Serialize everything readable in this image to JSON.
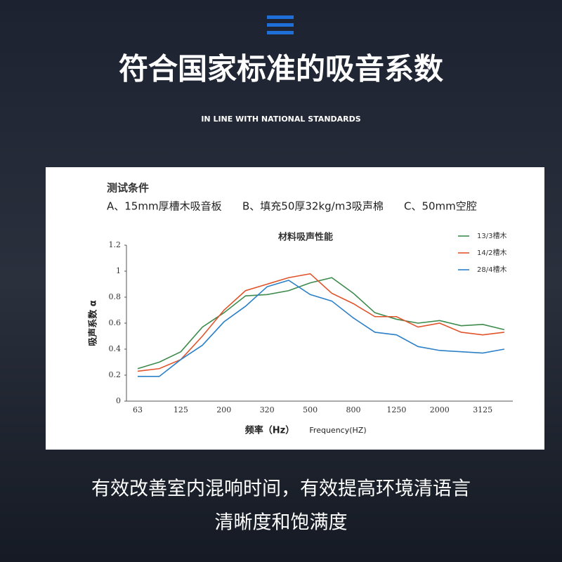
{
  "header": {
    "title": "符合国家标准的吸音系数",
    "subtitle": "IN LINE WITH NATIONAL STANDARDS"
  },
  "panel": {
    "heading": "测试条件",
    "conditions": [
      "A、15mm厚槽木吸音板",
      "B、填充50厚32kg/m3吸声棉",
      "C、50mm空腔"
    ]
  },
  "chart_data": {
    "type": "line",
    "title": "材料吸声性能",
    "y_label": "吸声系数 α",
    "x_label": "频率（Hz）",
    "x_label_en": "Frequency(HZ)",
    "categories": [
      "63",
      null,
      "125",
      null,
      "200",
      null,
      "320",
      null,
      "500",
      null,
      "800",
      null,
      "1250",
      null,
      "2000",
      null,
      "3125",
      null
    ],
    "ylim": [
      0,
      1.2
    ],
    "yticks": [
      0,
      0.2,
      0.4,
      0.6,
      0.8,
      1,
      1.2
    ],
    "grid": false,
    "legend": "top-right",
    "series": [
      {
        "name": "13/3槽木",
        "color": "#3d8b4c",
        "values": [
          0.25,
          0.3,
          0.38,
          0.57,
          0.68,
          0.81,
          0.82,
          0.85,
          0.91,
          0.95,
          0.83,
          0.68,
          0.63,
          0.6,
          0.62,
          0.58,
          0.59,
          0.55
        ]
      },
      {
        "name": "14/2槽木",
        "color": "#e2532b",
        "values": [
          0.23,
          0.25,
          0.32,
          0.5,
          0.7,
          0.85,
          0.9,
          0.95,
          0.98,
          0.83,
          0.75,
          0.65,
          0.65,
          0.57,
          0.6,
          0.53,
          0.51,
          0.53
        ]
      },
      {
        "name": "28/4槽木",
        "color": "#2b80c8",
        "values": [
          0.19,
          0.19,
          0.32,
          0.43,
          0.61,
          0.73,
          0.88,
          0.93,
          0.82,
          0.77,
          0.64,
          0.53,
          0.51,
          0.42,
          0.39,
          0.38,
          0.37,
          0.4
        ]
      }
    ]
  },
  "footer": {
    "lines": [
      "有效改善室内混响时间，有效提高环境清语言",
      "清晰度和饱满度"
    ]
  }
}
